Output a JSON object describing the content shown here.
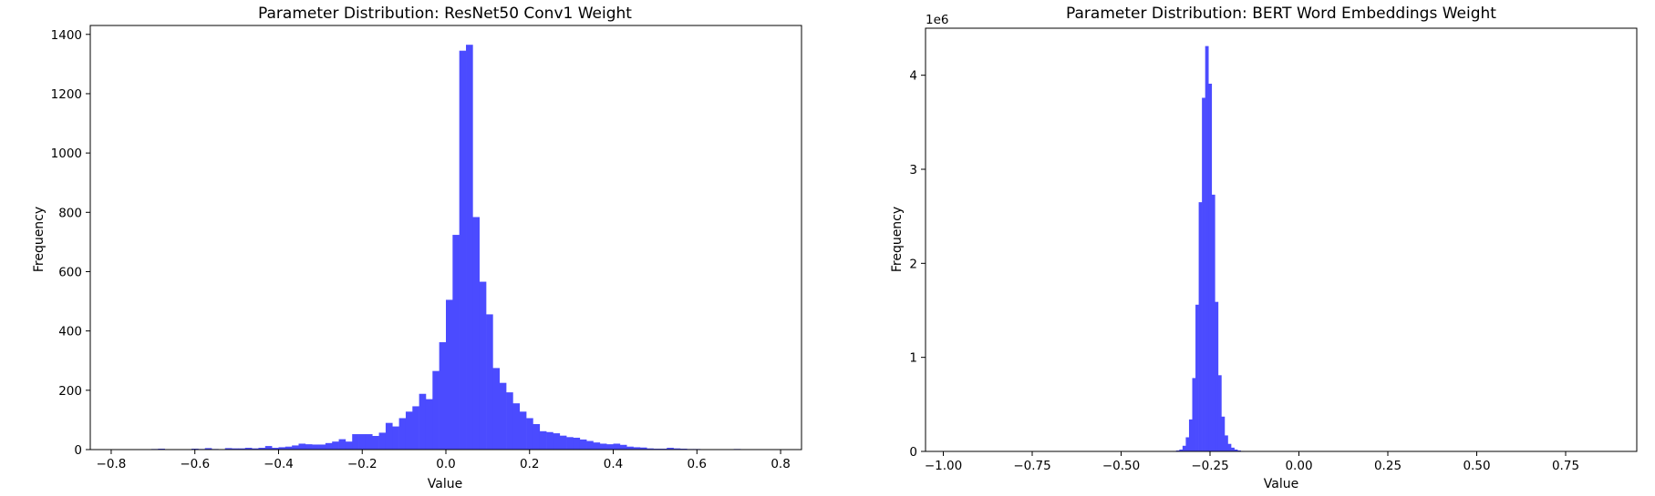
{
  "chart_data": [
    {
      "type": "bar",
      "title": "Parameter Distribution: ResNet50 Conv1 Weight",
      "xlabel": "Value",
      "ylabel": "Frequency",
      "xlim": [
        -0.85,
        0.85
      ],
      "ylim": [
        0,
        1430
      ],
      "xticks": [
        -0.8,
        -0.6,
        -0.4,
        -0.2,
        0.0,
        0.2,
        0.4,
        0.6,
        0.8
      ],
      "yticks": [
        0,
        200,
        400,
        600,
        800,
        1000,
        1200,
        1400
      ],
      "tick_labels_x": [
        "−0.8",
        "−0.6",
        "−0.4",
        "−0.2",
        "0.0",
        "0.2",
        "0.4",
        "0.6",
        "0.8"
      ],
      "tick_labels_y": [
        "0",
        "200",
        "400",
        "600",
        "800",
        "1000",
        "1200",
        "1400"
      ],
      "offset_label": "",
      "color": "#4b4bff",
      "grid": false,
      "bin_edges": [
        -0.8,
        0.8
      ],
      "values": [
        0,
        0,
        0,
        0,
        0,
        0,
        2,
        3,
        0,
        0,
        1,
        0,
        3,
        2,
        5,
        2,
        0,
        5,
        4,
        4,
        6,
        4,
        6,
        12,
        6,
        8,
        10,
        14,
        20,
        18,
        17,
        17,
        22,
        27,
        35,
        27,
        52,
        52,
        52,
        46,
        57,
        90,
        78,
        106,
        128,
        146,
        188,
        170,
        265,
        362,
        505,
        724,
        1345,
        1365,
        784,
        566,
        456,
        275,
        225,
        193,
        156,
        128,
        106,
        86,
        62,
        59,
        55,
        47,
        42,
        40,
        34,
        29,
        24,
        20,
        18,
        20,
        16,
        10,
        8,
        7,
        4,
        3,
        3,
        6,
        4,
        3,
        2,
        2,
        1,
        1,
        1,
        1,
        0,
        2,
        0,
        1,
        1,
        0,
        0,
        0
      ]
    },
    {
      "type": "bar",
      "title": "Parameter Distribution: BERT Word Embeddings Weight",
      "xlabel": "Value",
      "ylabel": "Frequency",
      "xlim": [
        -1.05,
        0.95
      ],
      "ylim": [
        0,
        4.5
      ],
      "xticks": [
        -1.0,
        -0.75,
        -0.5,
        -0.25,
        0.0,
        0.25,
        0.5,
        0.75
      ],
      "yticks": [
        0,
        1,
        2,
        3,
        4
      ],
      "tick_labels_x": [
        "−1.00",
        "−0.75",
        "−0.50",
        "−0.25",
        "0.00",
        "0.25",
        "0.50",
        "0.75"
      ],
      "tick_labels_y": [
        "0",
        "1",
        "2",
        "3",
        "4"
      ],
      "offset_label": "1e6",
      "color": "#4b4bff",
      "grid": false,
      "bin_edges": [
        -1.0,
        0.9
      ],
      "values": [
        0,
        0,
        0,
        0,
        0,
        0,
        0,
        0,
        0,
        0,
        0,
        0,
        0,
        0,
        0,
        0,
        0,
        0,
        0,
        0,
        0,
        0,
        0,
        0,
        0,
        0,
        0,
        0,
        0,
        0,
        0,
        0,
        0,
        0,
        0,
        0,
        0,
        0,
        0,
        0,
        0,
        0,
        0,
        0,
        0,
        0,
        0,
        0,
        0,
        0,
        0,
        0,
        0,
        0,
        0,
        0,
        0,
        0,
        0,
        0,
        0,
        0,
        0,
        0,
        0,
        0,
        0,
        0,
        0,
        0,
        0,
        0.005,
        0.01,
        0.02,
        0.06,
        0.15,
        0.34,
        0.78,
        1.56,
        2.65,
        3.76,
        4.31,
        3.91,
        2.73,
        1.59,
        0.81,
        0.37,
        0.17,
        0.08,
        0.04,
        0.02,
        0.01,
        0.005,
        0,
        0,
        0,
        0,
        0,
        0,
        0,
        0,
        0,
        0,
        0,
        0,
        0,
        0,
        0,
        0,
        0,
        0,
        0,
        0,
        0,
        0,
        0,
        0,
        0,
        0,
        0,
        0,
        0,
        0,
        0,
        0,
        0,
        0,
        0,
        0,
        0,
        0,
        0,
        0,
        0,
        0,
        0,
        0,
        0,
        0,
        0,
        0,
        0,
        0,
        0,
        0,
        0,
        0,
        0,
        0,
        0,
        0,
        0,
        0,
        0,
        0,
        0,
        0,
        0,
        0,
        0,
        0,
        0,
        0,
        0,
        0,
        0,
        0,
        0,
        0,
        0,
        0,
        0,
        0,
        0,
        0,
        0,
        0,
        0,
        0,
        0,
        0,
        0,
        0,
        0,
        0,
        0,
        0,
        0,
        0,
        0,
        0,
        0,
        0,
        0,
        0,
        0,
        0,
        0,
        0,
        0,
        0,
        0,
        0,
        0,
        0,
        0,
        0,
        0,
        0
      ]
    }
  ]
}
